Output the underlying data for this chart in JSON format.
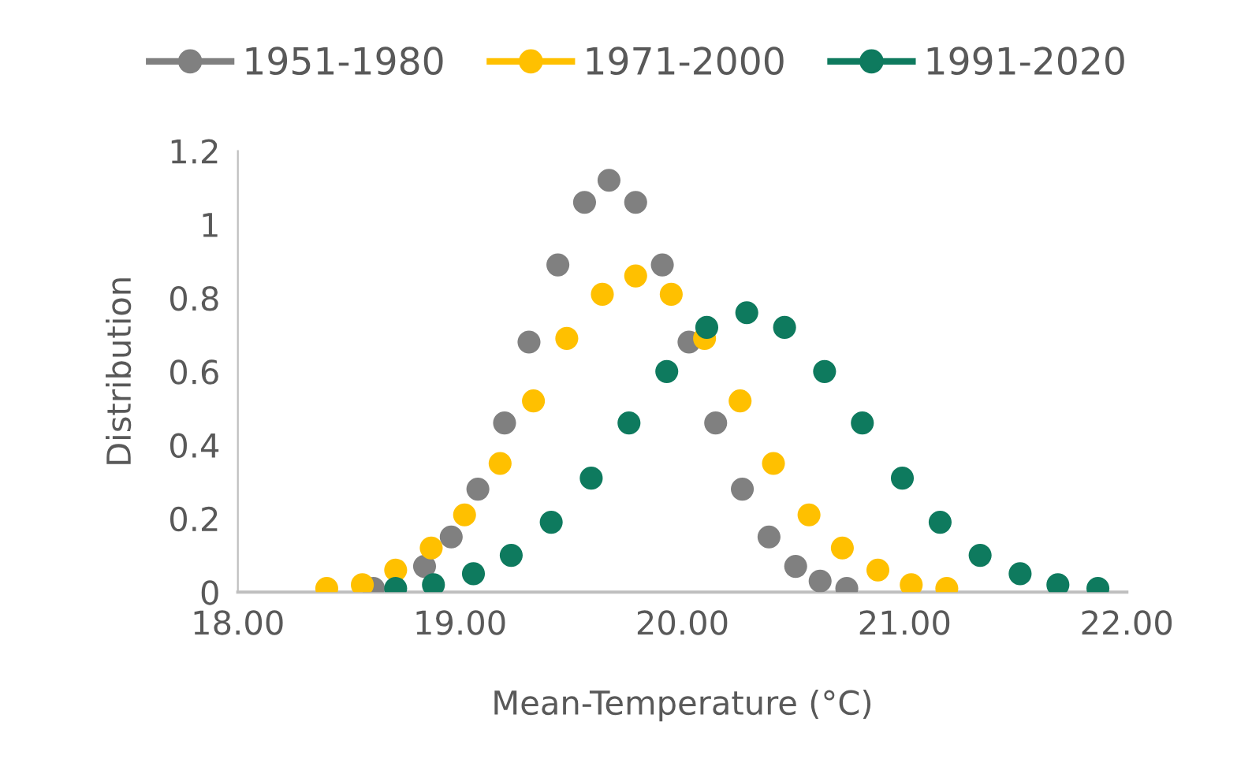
{
  "chart_data": {
    "type": "scatter",
    "xlabel": "Mean-Temperature (°C)",
    "ylabel": "Distribution",
    "xlim": [
      18,
      22
    ],
    "ylim": [
      0,
      1.2
    ],
    "xticks": [
      {
        "value": 18,
        "label": "18.00"
      },
      {
        "value": 19,
        "label": "19.00"
      },
      {
        "value": 20,
        "label": "20.00"
      },
      {
        "value": 21,
        "label": "21.00"
      },
      {
        "value": 22,
        "label": "22.00"
      }
    ],
    "yticks": [
      0,
      0.2,
      0.4,
      0.6,
      0.8,
      1,
      1.2
    ],
    "grid": false,
    "legend": "top",
    "marker": "circle",
    "series": [
      {
        "name": "1951-1980",
        "color": "#808080",
        "x": [
          18.61,
          18.72,
          18.84,
          18.96,
          19.08,
          19.2,
          19.31,
          19.44,
          19.56,
          19.67,
          19.79,
          19.91,
          20.03,
          20.15,
          20.27,
          20.39,
          20.51,
          20.62,
          20.74
        ],
        "values": [
          0.01,
          null,
          0.07,
          0.15,
          0.28,
          0.46,
          0.68,
          0.89,
          1.06,
          1.12,
          1.06,
          0.89,
          0.68,
          0.46,
          0.28,
          0.15,
          0.07,
          0.03,
          0.01
        ]
      },
      {
        "name": "1971-2000",
        "color": "#ffc000",
        "x": [
          18.4,
          18.56,
          18.71,
          18.87,
          19.02,
          19.18,
          19.33,
          19.48,
          19.64,
          19.79,
          19.95,
          20.1,
          20.26,
          20.41,
          20.57,
          20.72,
          20.88,
          21.03,
          21.19
        ],
        "values": [
          0.01,
          0.02,
          0.06,
          0.12,
          0.21,
          0.35,
          0.52,
          0.69,
          0.81,
          0.86,
          0.81,
          0.69,
          0.52,
          0.35,
          0.21,
          0.12,
          0.06,
          0.02,
          0.01
        ]
      },
      {
        "name": "1991-2020",
        "color": "#0e7a5e",
        "x": [
          18.71,
          18.88,
          19.06,
          19.23,
          19.41,
          19.59,
          19.76,
          19.93,
          20.11,
          20.29,
          20.46,
          20.64,
          20.81,
          20.99,
          21.16,
          21.34,
          21.52,
          21.69,
          21.87
        ],
        "values": [
          0.01,
          0.02,
          0.05,
          0.1,
          0.19,
          0.31,
          0.46,
          0.6,
          0.72,
          0.76,
          0.72,
          0.6,
          0.46,
          0.31,
          0.19,
          0.1,
          0.05,
          0.02,
          0.01
        ]
      }
    ]
  }
}
